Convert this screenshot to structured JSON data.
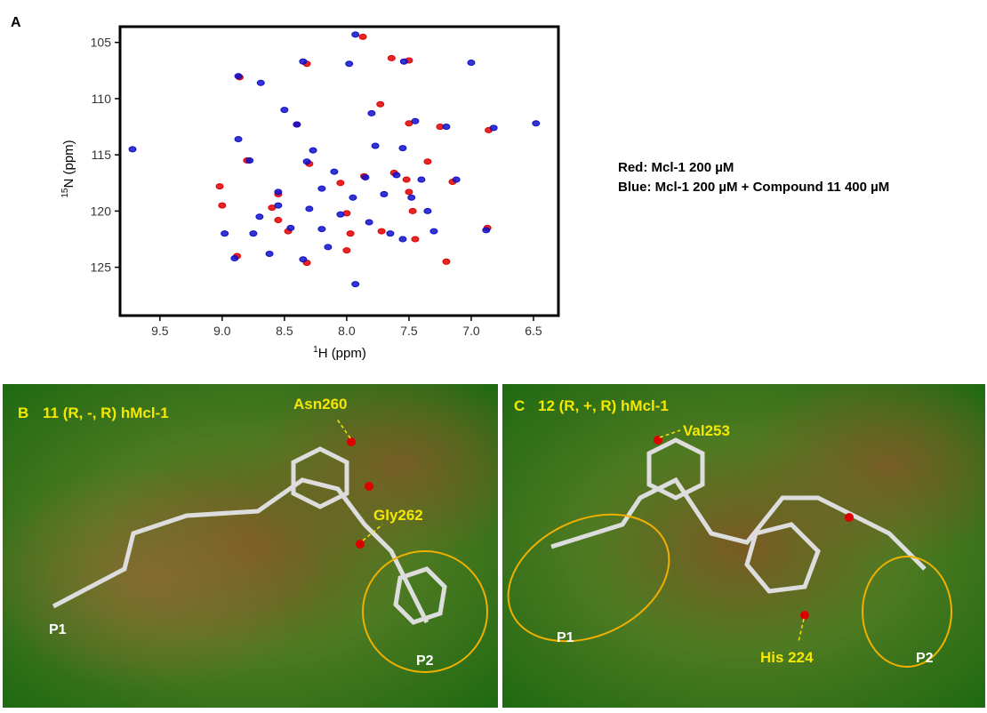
{
  "chart_data": {
    "type": "scatter",
    "panel_label": "A",
    "xlabel_sup": "1",
    "xlabel": "H  (ppm)",
    "ylabel_sup": "15",
    "ylabel": "N  (ppm)",
    "xlim": [
      9.82,
      6.3
    ],
    "ylim": [
      103.6,
      129.3
    ],
    "grid": false,
    "xticks": [
      9.5,
      {
        "value": 9,
        "label": "9.0"
      },
      8.5,
      {
        "value": 8,
        "label": "8.0"
      },
      7.5,
      {
        "value": 7,
        "label": "7.0"
      },
      6.5
    ],
    "yticks": [
      105,
      110,
      115,
      120,
      125
    ],
    "series": [
      {
        "name": "Red:  Mcl-1  200 µM",
        "color": "#e00000",
        "x": [
          7.87,
          8.32,
          7.64,
          7.5,
          8.86,
          8.4,
          7.73,
          7.5,
          7.25,
          6.86,
          8.8,
          8.3,
          7.86,
          7.62,
          7.52,
          7.15,
          8.55,
          8.05,
          7.5,
          8.6,
          8.0,
          7.47,
          9.0,
          8.47,
          7.97,
          7.72,
          7.45,
          6.87,
          8.88,
          8.32,
          7.2,
          8.0,
          7.35,
          8.55,
          9.02
        ],
        "values": [
          104.5,
          106.9,
          106.4,
          106.6,
          108.1,
          112.3,
          110.5,
          112.2,
          112.5,
          112.8,
          115.5,
          115.8,
          116.9,
          116.6,
          117.2,
          117.4,
          118.5,
          117.5,
          118.3,
          119.7,
          120.2,
          120.0,
          119.5,
          121.8,
          122.0,
          121.8,
          122.5,
          121.5,
          124.0,
          124.6,
          124.5,
          123.5,
          115.6,
          120.8,
          117.8
        ]
      },
      {
        "name": "Blue: Mcl-1  200 µM + Compound 11 400 µM",
        "color": "#1010c8",
        "x": [
          7.93,
          8.35,
          7.54,
          7.0,
          8.87,
          8.69,
          7.98,
          8.5,
          8.4,
          7.8,
          7.45,
          7.2,
          6.82,
          6.48,
          8.87,
          8.27,
          7.77,
          7.55,
          8.78,
          8.32,
          8.1,
          7.85,
          7.6,
          7.4,
          7.12,
          8.55,
          8.2,
          7.95,
          7.7,
          7.48,
          8.55,
          8.3,
          8.05,
          7.82,
          7.35,
          8.98,
          8.75,
          8.45,
          8.2,
          7.65,
          7.3,
          6.88,
          8.9,
          8.62,
          8.35,
          8.15,
          7.93,
          7.55,
          9.72,
          8.7
        ],
        "values": [
          104.3,
          106.7,
          106.7,
          106.8,
          108.0,
          108.6,
          106.9,
          111.0,
          112.3,
          111.3,
          112.0,
          112.5,
          112.6,
          112.2,
          113.6,
          114.6,
          114.2,
          114.4,
          115.5,
          115.6,
          116.5,
          117.0,
          116.8,
          117.2,
          117.2,
          118.3,
          118.0,
          118.8,
          118.5,
          118.8,
          119.5,
          119.8,
          120.3,
          121.0,
          120.0,
          122.0,
          122.0,
          121.5,
          121.6,
          122.0,
          121.8,
          121.7,
          124.2,
          123.8,
          124.3,
          123.2,
          126.5,
          122.5,
          114.5,
          120.5
        ]
      }
    ]
  },
  "figure_panels": [
    {
      "label": "B",
      "title": "11 (R, -, R)  hMcl-1",
      "annotations": [
        "Asn260",
        "Gly262",
        "P1",
        "P2"
      ]
    },
    {
      "label": "C",
      "title": "12 (R, +, R)  hMcl-1",
      "annotations": [
        "Val253",
        "His 224",
        "P1",
        "P2"
      ]
    }
  ]
}
